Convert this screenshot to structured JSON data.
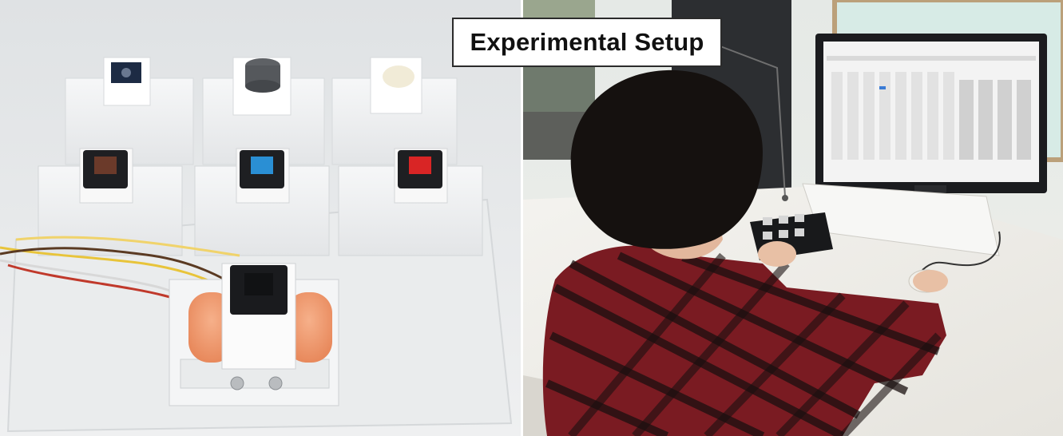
{
  "label": {
    "text": "Experimental Setup"
  },
  "panels": {
    "left": {
      "content": "photo of key switch prototypes"
    },
    "right": {
      "content": "photo of participant at computer"
    }
  }
}
